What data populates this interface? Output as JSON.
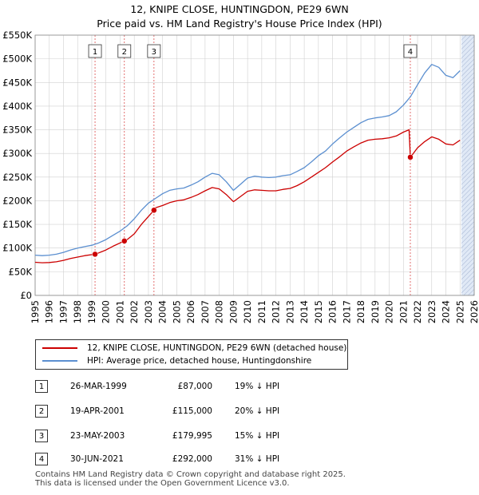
{
  "title_line1": "12, KNIPE CLOSE, HUNTINGDON, PE29 6WN",
  "title_line2": "Price paid vs. HM Land Registry's House Price Index (HPI)",
  "legend": {
    "property_label": "12, KNIPE CLOSE, HUNTINGDON, PE29 6WN (detached house)",
    "hpi_label": "HPI: Average price, detached house, Huntingdonshire"
  },
  "sales": [
    {
      "num": "1",
      "date": "26-MAR-1999",
      "price": "£87,000",
      "delta": "19% ↓ HPI"
    },
    {
      "num": "2",
      "date": "19-APR-2001",
      "price": "£115,000",
      "delta": "20% ↓ HPI"
    },
    {
      "num": "3",
      "date": "23-MAY-2003",
      "price": "£179,995",
      "delta": "15% ↓ HPI"
    },
    {
      "num": "4",
      "date": "30-JUN-2021",
      "price": "£292,000",
      "delta": "31% ↓ HPI"
    }
  ],
  "footer": {
    "line1": "Contains HM Land Registry data © Crown copyright and database right 2025.",
    "line2": "This data is licensed under the Open Government Licence v3.0."
  },
  "colors": {
    "property": "#cc0000",
    "hpi": "#5b8fd0",
    "shade": "#dde6f5",
    "grid": "#d0d0d0",
    "vline": "#cc0000"
  },
  "chart_data": {
    "type": "line",
    "title": "12, KNIPE CLOSE, HUNTINGDON, PE29 6WN",
    "xlim": [
      1995,
      2026
    ],
    "ylim": [
      0,
      550000
    ],
    "xticks": [
      1995,
      1996,
      1997,
      1998,
      1999,
      2000,
      2001,
      2002,
      2003,
      2004,
      2005,
      2006,
      2007,
      2008,
      2009,
      2010,
      2011,
      2012,
      2013,
      2014,
      2015,
      2016,
      2017,
      2018,
      2019,
      2020,
      2021,
      2022,
      2023,
      2024,
      2025,
      2026
    ],
    "yticks": [
      {
        "value": 0,
        "label": "£0"
      },
      {
        "value": 50000,
        "label": "£50K"
      },
      {
        "value": 100000,
        "label": "£100K"
      },
      {
        "value": 150000,
        "label": "£150K"
      },
      {
        "value": 200000,
        "label": "£200K"
      },
      {
        "value": 250000,
        "label": "£250K"
      },
      {
        "value": 300000,
        "label": "£300K"
      },
      {
        "value": 350000,
        "label": "£350K"
      },
      {
        "value": 400000,
        "label": "£400K"
      },
      {
        "value": 450000,
        "label": "£450K"
      },
      {
        "value": 500000,
        "label": "£500K"
      },
      {
        "value": 550000,
        "label": "£550K"
      }
    ],
    "shaded_after": 2025.1,
    "series": [
      {
        "name": "HPI: Average price, detached house, Huntingdonshire",
        "points": [
          [
            1995.0,
            85000
          ],
          [
            1995.5,
            84000
          ],
          [
            1996.0,
            85000
          ],
          [
            1996.5,
            87000
          ],
          [
            1997.0,
            91000
          ],
          [
            1997.5,
            96000
          ],
          [
            1998.0,
            100000
          ],
          [
            1998.5,
            103000
          ],
          [
            1999.0,
            106000
          ],
          [
            1999.5,
            111000
          ],
          [
            2000.0,
            118000
          ],
          [
            2000.5,
            127000
          ],
          [
            2001.0,
            136000
          ],
          [
            2001.5,
            147000
          ],
          [
            2002.0,
            162000
          ],
          [
            2002.5,
            180000
          ],
          [
            2003.0,
            195000
          ],
          [
            2003.5,
            205000
          ],
          [
            2004.0,
            215000
          ],
          [
            2004.5,
            222000
          ],
          [
            2005.0,
            225000
          ],
          [
            2005.5,
            227000
          ],
          [
            2006.0,
            233000
          ],
          [
            2006.5,
            240000
          ],
          [
            2007.0,
            250000
          ],
          [
            2007.5,
            258000
          ],
          [
            2008.0,
            255000
          ],
          [
            2008.5,
            240000
          ],
          [
            2009.0,
            222000
          ],
          [
            2009.5,
            235000
          ],
          [
            2010.0,
            248000
          ],
          [
            2010.5,
            252000
          ],
          [
            2011.0,
            250000
          ],
          [
            2011.5,
            249000
          ],
          [
            2012.0,
            250000
          ],
          [
            2012.5,
            253000
          ],
          [
            2013.0,
            255000
          ],
          [
            2013.5,
            262000
          ],
          [
            2014.0,
            270000
          ],
          [
            2014.5,
            282000
          ],
          [
            2015.0,
            295000
          ],
          [
            2015.5,
            305000
          ],
          [
            2016.0,
            320000
          ],
          [
            2016.5,
            333000
          ],
          [
            2017.0,
            345000
          ],
          [
            2017.5,
            355000
          ],
          [
            2018.0,
            365000
          ],
          [
            2018.5,
            372000
          ],
          [
            2019.0,
            375000
          ],
          [
            2019.5,
            377000
          ],
          [
            2020.0,
            380000
          ],
          [
            2020.5,
            388000
          ],
          [
            2021.0,
            402000
          ],
          [
            2021.5,
            420000
          ],
          [
            2022.0,
            445000
          ],
          [
            2022.5,
            470000
          ],
          [
            2023.0,
            488000
          ],
          [
            2023.5,
            482000
          ],
          [
            2024.0,
            465000
          ],
          [
            2024.5,
            460000
          ],
          [
            2025.0,
            475000
          ]
        ]
      },
      {
        "name": "12, KNIPE CLOSE, HUNTINGDON, PE29 6WN (detached house)",
        "points": [
          [
            1995.0,
            70000
          ],
          [
            1995.5,
            69000
          ],
          [
            1996.0,
            69500
          ],
          [
            1996.5,
            71000
          ],
          [
            1997.0,
            74000
          ],
          [
            1997.5,
            78000
          ],
          [
            1998.0,
            81000
          ],
          [
            1998.5,
            84000
          ],
          [
            1999.23,
            87000
          ],
          [
            1999.5,
            90000
          ],
          [
            2000.0,
            96000
          ],
          [
            2000.5,
            104000
          ],
          [
            2001.3,
            115000
          ],
          [
            2001.5,
            118000
          ],
          [
            2002.0,
            130000
          ],
          [
            2002.5,
            150000
          ],
          [
            2003.39,
            179995
          ],
          [
            2003.5,
            185000
          ],
          [
            2004.0,
            190000
          ],
          [
            2004.5,
            196000
          ],
          [
            2005.0,
            200000
          ],
          [
            2005.5,
            202000
          ],
          [
            2006.0,
            207000
          ],
          [
            2006.5,
            213000
          ],
          [
            2007.0,
            221000
          ],
          [
            2007.5,
            228000
          ],
          [
            2008.0,
            225000
          ],
          [
            2008.5,
            213000
          ],
          [
            2009.0,
            198000
          ],
          [
            2009.5,
            209000
          ],
          [
            2010.0,
            220000
          ],
          [
            2010.5,
            223000
          ],
          [
            2011.0,
            222000
          ],
          [
            2011.5,
            221000
          ],
          [
            2012.0,
            221000
          ],
          [
            2012.5,
            224000
          ],
          [
            2013.0,
            226000
          ],
          [
            2013.5,
            232000
          ],
          [
            2014.0,
            240000
          ],
          [
            2014.5,
            250000
          ],
          [
            2015.0,
            260000
          ],
          [
            2015.5,
            270000
          ],
          [
            2016.0,
            282000
          ],
          [
            2016.5,
            293000
          ],
          [
            2017.0,
            305000
          ],
          [
            2017.5,
            314000
          ],
          [
            2018.0,
            322000
          ],
          [
            2018.5,
            328000
          ],
          [
            2019.0,
            330000
          ],
          [
            2019.5,
            331000
          ],
          [
            2020.0,
            333000
          ],
          [
            2020.5,
            337000
          ],
          [
            2021.0,
            345000
          ],
          [
            2021.4,
            350000
          ],
          [
            2021.49,
            292000
          ],
          [
            2021.6,
            296000
          ],
          [
            2022.0,
            312000
          ],
          [
            2022.5,
            325000
          ],
          [
            2023.0,
            335000
          ],
          [
            2023.5,
            330000
          ],
          [
            2024.0,
            320000
          ],
          [
            2024.5,
            318000
          ],
          [
            2025.0,
            328000
          ]
        ]
      }
    ],
    "sale_markers": [
      {
        "label": "1",
        "x": 1999.23,
        "y": 87000
      },
      {
        "label": "2",
        "x": 2001.3,
        "y": 115000
      },
      {
        "label": "3",
        "x": 2003.39,
        "y": 179995
      },
      {
        "label": "4",
        "x": 2021.49,
        "y": 292000
      }
    ]
  }
}
